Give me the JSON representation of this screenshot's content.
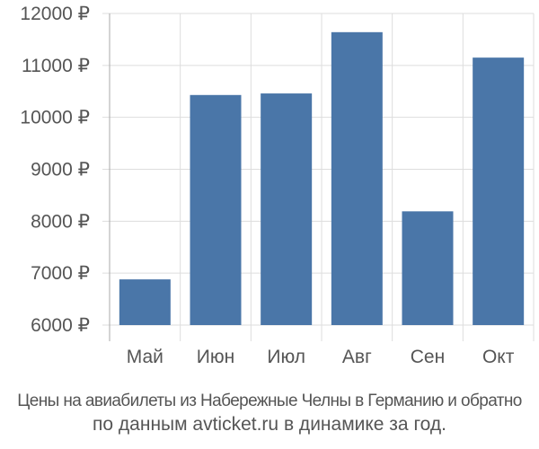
{
  "chart_data": {
    "type": "bar",
    "categories": [
      "Май",
      "Июн",
      "Июл",
      "Авг",
      "Сен",
      "Окт"
    ],
    "values": [
      6880,
      10430,
      10460,
      11640,
      8190,
      11150
    ],
    "y_ticks": [
      "6000 ₽",
      "7000 ₽",
      "8000 ₽",
      "9000 ₽",
      "10000 ₽",
      "11000 ₽",
      "12000 ₽"
    ],
    "ylim": [
      6000,
      12000
    ],
    "grid": true,
    "bar_color": "#4a76a8",
    "grid_color": "#dddddd"
  },
  "caption": {
    "line1": "Цены на авиабилеты из Набережные Челны в Германию и обратно",
    "line2": "по данным avticket.ru в динамике за год."
  }
}
